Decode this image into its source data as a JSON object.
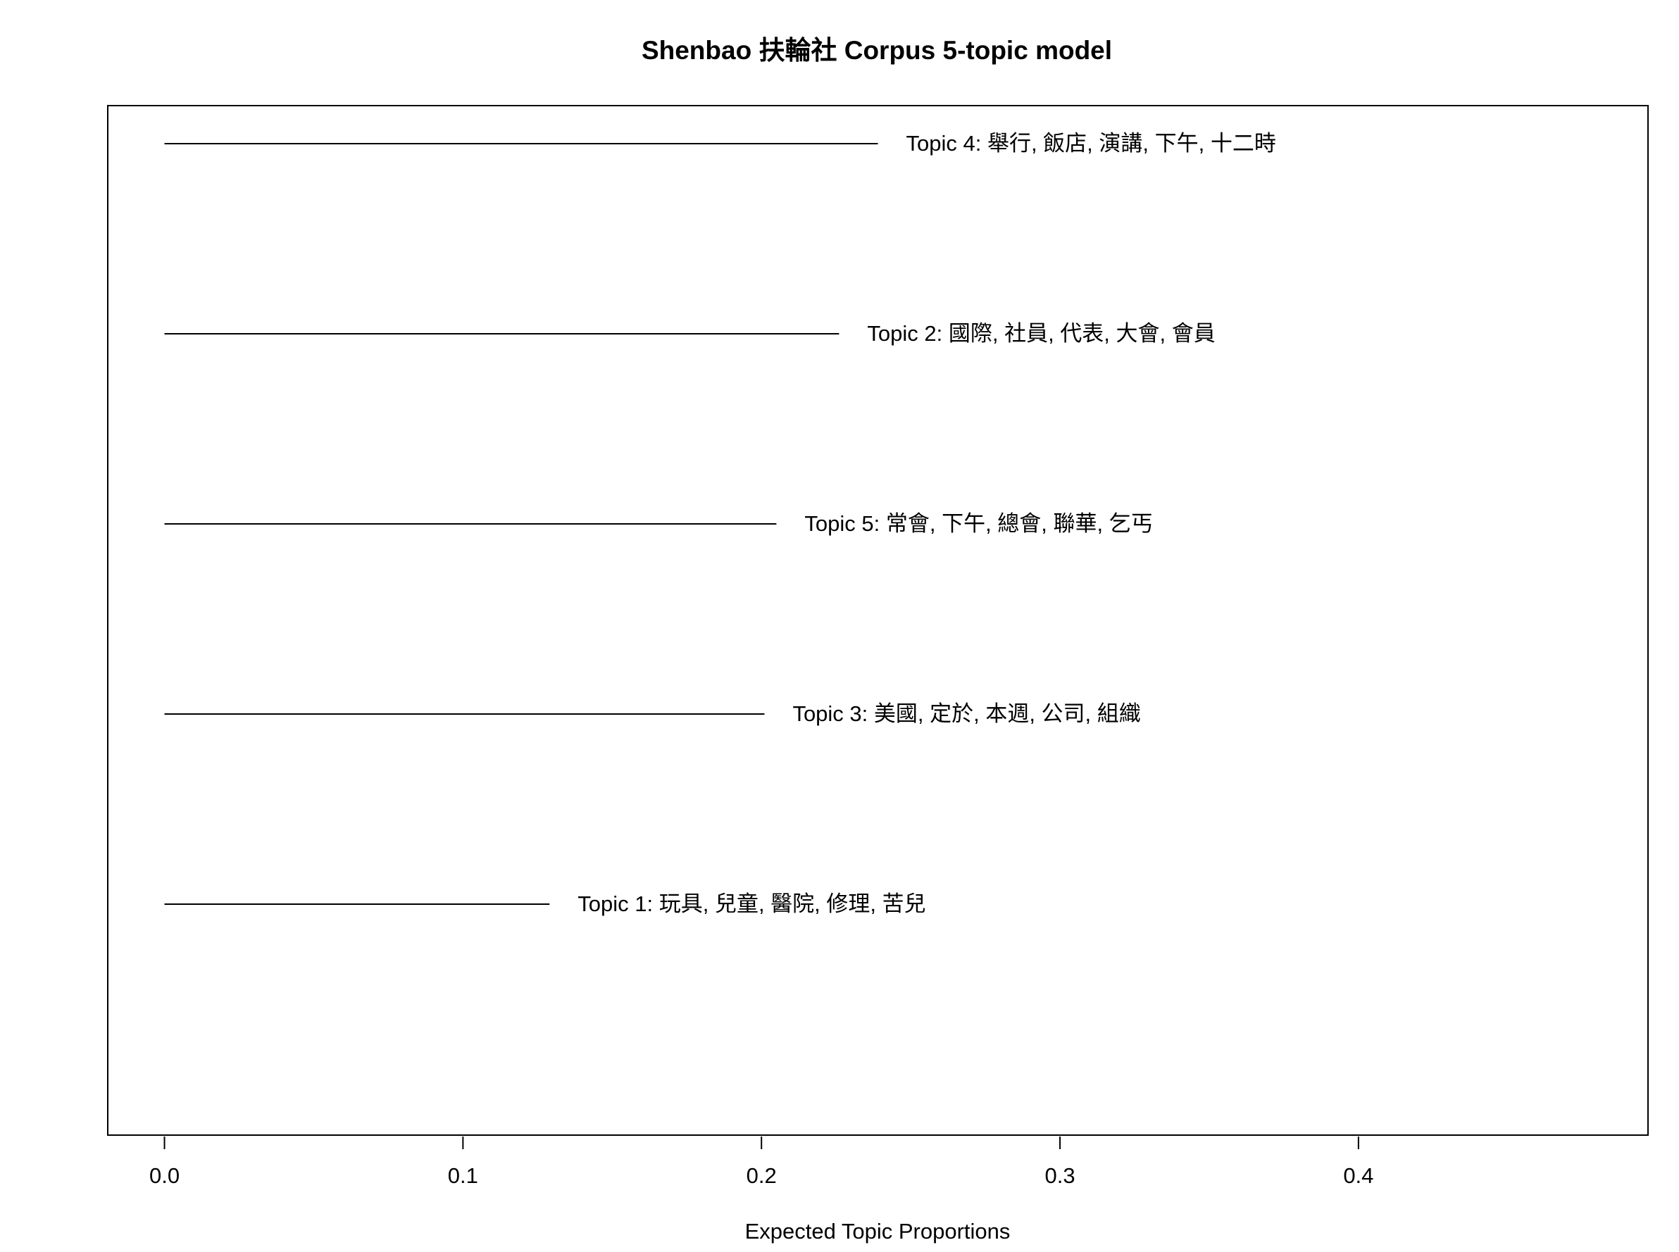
{
  "chart_data": {
    "type": "bar",
    "title": "Shenbao 扶輪社 Corpus 5-topic model",
    "xlabel": "Expected Topic Proportions",
    "ylabel": "",
    "xlim": [
      -0.019,
      0.497
    ],
    "x_ticks": [
      0.0,
      0.1,
      0.2,
      0.3,
      0.4
    ],
    "x_tick_labels": [
      "0.0",
      "0.1",
      "0.2",
      "0.3",
      "0.4"
    ],
    "grid": false,
    "legend": "none",
    "orientation": "horizontal",
    "series": [
      {
        "values": [
          {
            "label": "Topic 4: 舉行, 飯店, 演講, 下午, 十二時",
            "value": 0.239
          },
          {
            "label": "Topic 2: 國際, 社員, 代表, 大會, 會員",
            "value": 0.226
          },
          {
            "label": "Topic 5: 常會, 下午, 總會, 聯華, 乞丐",
            "value": 0.205
          },
          {
            "label": "Topic 3: 美國, 定於, 本週, 公司, 組織",
            "value": 0.201
          },
          {
            "label": "Topic 1: 玩具, 兒童, 醫院, 修理, 苦兒",
            "value": 0.129
          }
        ]
      }
    ],
    "line_color": "#000000"
  }
}
